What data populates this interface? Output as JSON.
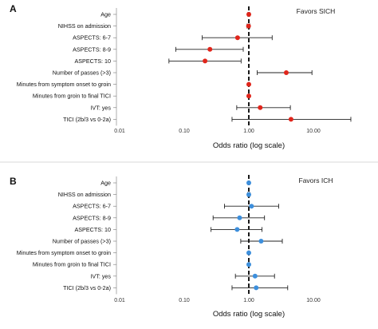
{
  "chart_data": [
    {
      "type": "forest",
      "panel_label": "A",
      "annotation": "Favors SICH",
      "xlabel": "Odds ratio (log scale)",
      "x_scale": "log",
      "xlim": [
        0.01,
        100
      ],
      "reference_line": 1,
      "xticks": [
        "0.01",
        "0.10",
        "1.00",
        "10.00"
      ],
      "marker_color": "#e0251b",
      "rows": [
        {
          "label": "Age",
          "or": 1.0,
          "lower": 0.97,
          "upper": 1.03
        },
        {
          "label": "NIHSS on admission",
          "or": 0.99,
          "lower": 0.94,
          "upper": 1.04
        },
        {
          "label": "ASPECTS: 6-7",
          "or": 0.67,
          "lower": 0.19,
          "upper": 2.3
        },
        {
          "label": "ASPECTS: 8-9",
          "or": 0.25,
          "lower": 0.074,
          "upper": 0.82
        },
        {
          "label": "ASPECTS: 10",
          "or": 0.21,
          "lower": 0.058,
          "upper": 0.76
        },
        {
          "label": "Number of passes (>3)",
          "or": 3.8,
          "lower": 1.35,
          "upper": 9.5
        },
        {
          "label": "Minutes from symptom onset to groin",
          "or": 1.0,
          "lower": 0.995,
          "upper": 1.005
        },
        {
          "label": "Minutes from groin to final TICI",
          "or": 1.0,
          "lower": 0.99,
          "upper": 1.01
        },
        {
          "label": "IVT: yes",
          "or": 1.5,
          "lower": 0.65,
          "upper": 4.4
        },
        {
          "label": "TICI (2b/3 vs 0-2a)",
          "or": 4.5,
          "lower": 0.55,
          "upper": 38
        }
      ]
    },
    {
      "type": "forest",
      "panel_label": "B",
      "annotation": "Favors ICH",
      "xlabel": "Odds ratio (log scale)",
      "x_scale": "log",
      "xlim": [
        0.01,
        100
      ],
      "reference_line": 1,
      "xticks": [
        "0.01",
        "0.10",
        "1.00",
        "10.00"
      ],
      "marker_color": "#3d8fdc",
      "rows": [
        {
          "label": "Age",
          "or": 1.0,
          "lower": 0.98,
          "upper": 1.02
        },
        {
          "label": "NIHSS on admission",
          "or": 1.0,
          "lower": 0.96,
          "upper": 1.04
        },
        {
          "label": "ASPECTS: 6-7",
          "or": 1.1,
          "lower": 0.42,
          "upper": 2.9
        },
        {
          "label": "ASPECTS: 8-9",
          "or": 0.72,
          "lower": 0.28,
          "upper": 1.75
        },
        {
          "label": "ASPECTS: 10",
          "or": 0.66,
          "lower": 0.26,
          "upper": 1.6
        },
        {
          "label": "Number of passes (>3)",
          "or": 1.55,
          "lower": 0.75,
          "upper": 3.3
        },
        {
          "label": "Minutes from symptom onset to groin",
          "or": 1.0,
          "lower": 0.995,
          "upper": 1.005
        },
        {
          "label": "Minutes from groin to final TICI",
          "or": 1.0,
          "lower": 0.99,
          "upper": 1.01
        },
        {
          "label": "IVT: yes",
          "or": 1.25,
          "lower": 0.62,
          "upper": 2.5
        },
        {
          "label": "TICI (2b/3 vs 0-2a)",
          "or": 1.3,
          "lower": 0.55,
          "upper": 4.0
        }
      ]
    }
  ]
}
